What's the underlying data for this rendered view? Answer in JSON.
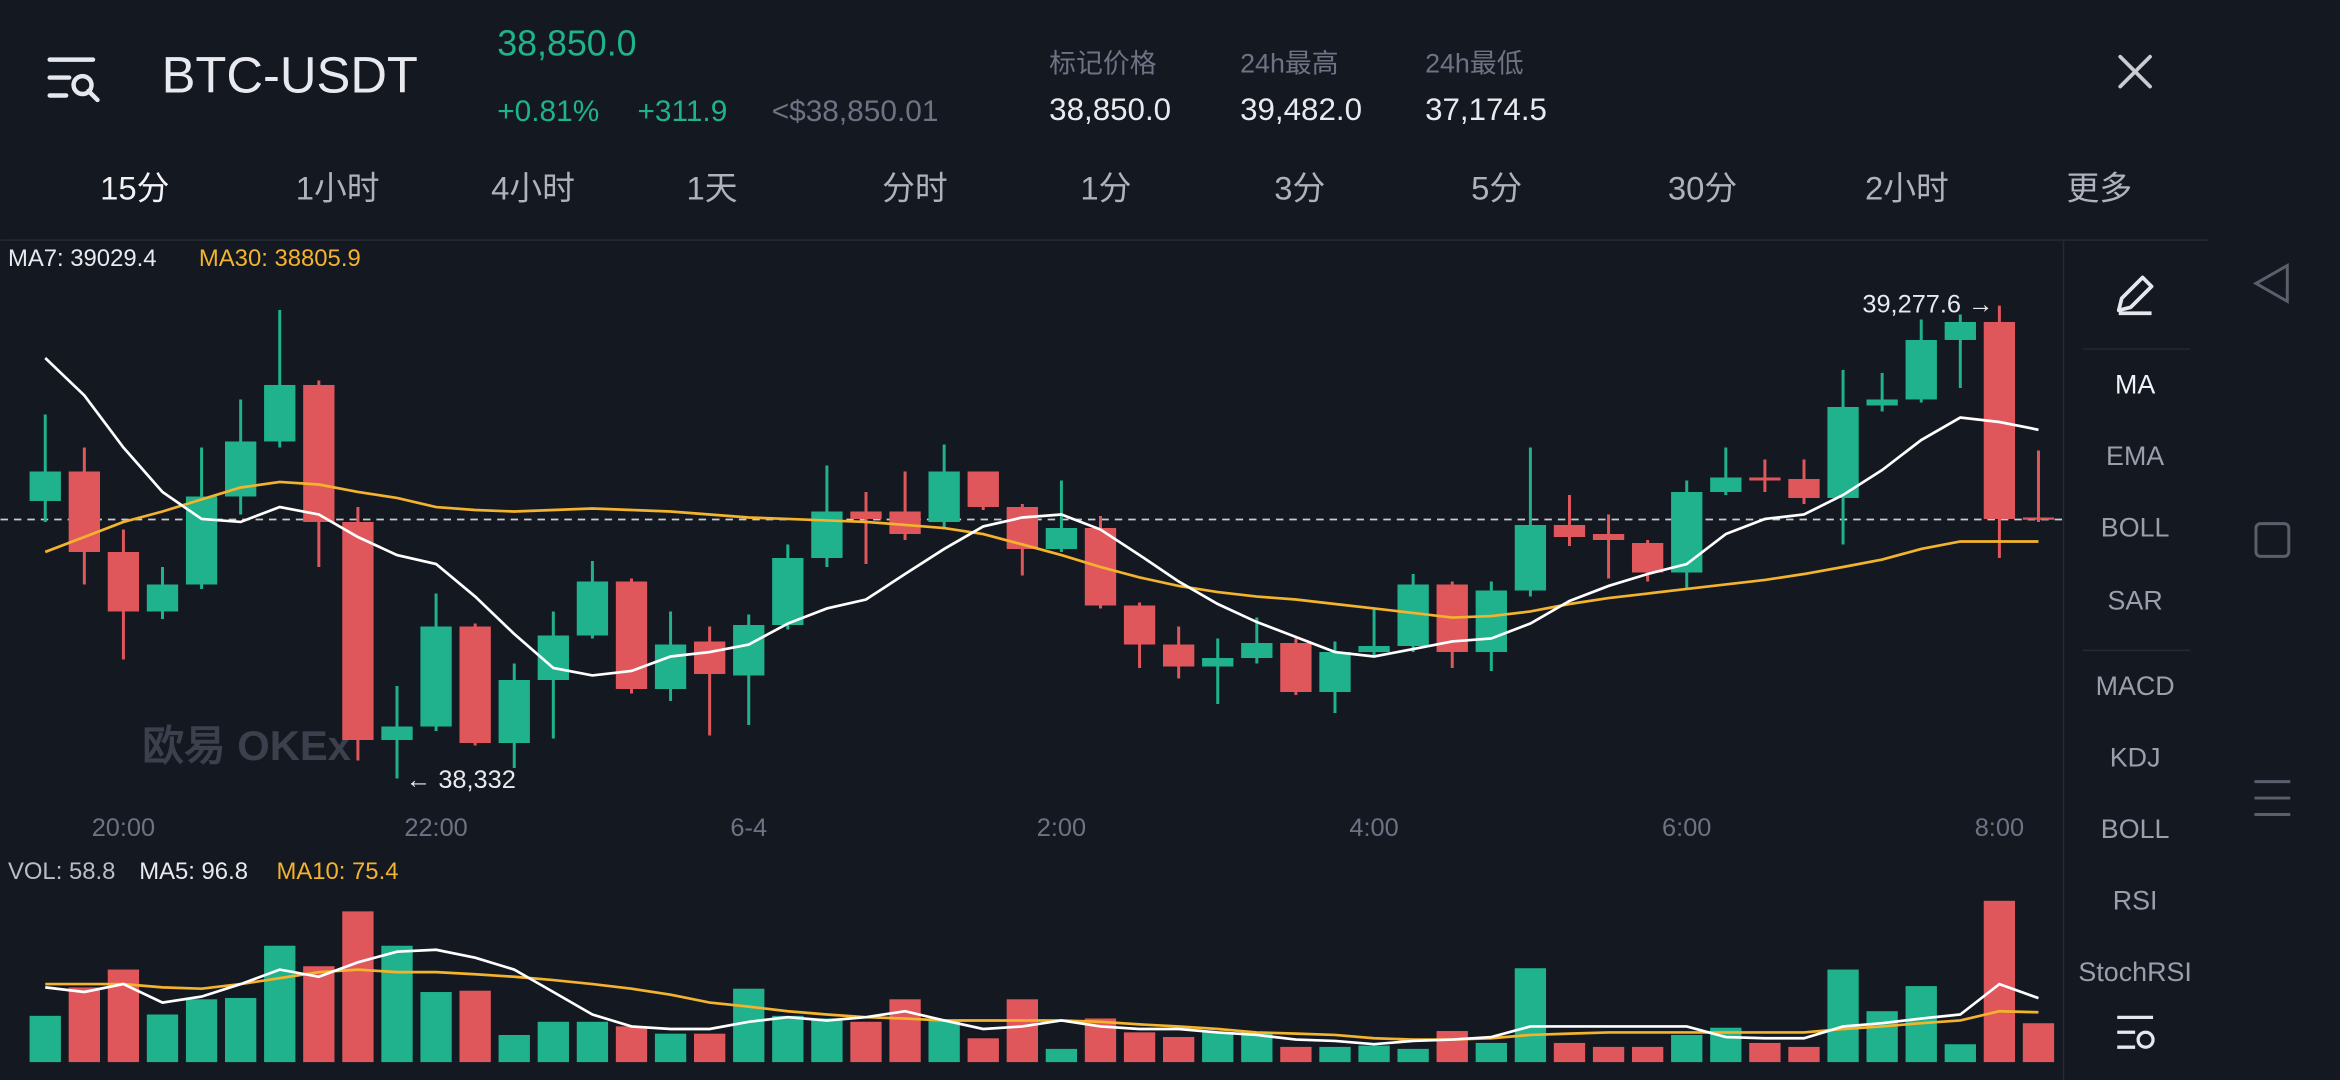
{
  "header": {
    "symbol": "BTC-USDT",
    "last_price": "38,850.0",
    "change_pct": "+0.81%",
    "change": "+311.9",
    "index_price": "<$38,850.01",
    "stats": [
      {
        "label": "标记价格",
        "value": "38,850.0"
      },
      {
        "label": "24h最高",
        "value": "39,482.0"
      },
      {
        "label": "24h最低",
        "value": "37,174.5"
      }
    ]
  },
  "tabs": [
    "15分",
    "1小时",
    "4小时",
    "1天",
    "分时",
    "1分",
    "3分",
    "5分",
    "30分",
    "2小时",
    "更多"
  ],
  "kline": {
    "type": "candlestick",
    "legend": {
      "ma7": "MA7: 39029.4",
      "ma30": "MA30: 38805.9"
    },
    "watermark": "欧易 OKEx",
    "high_label": "39,277.6 →",
    "low_label": "← 38,332",
    "up_color": "#1fb28d",
    "down_color": "#e0575b",
    "ma7_color": "#ffffff",
    "ma30_color": "#f3b32c",
    "ylim": [
      38278,
      39337
    ],
    "price_line": 38850,
    "categories": [
      null,
      null,
      "20:00",
      null,
      null,
      null,
      null,
      null,
      null,
      null,
      "22:00",
      null,
      null,
      null,
      null,
      null,
      null,
      null,
      "6-4",
      null,
      null,
      null,
      null,
      null,
      null,
      null,
      "2:00",
      null,
      null,
      null,
      null,
      null,
      null,
      null,
      "4:00",
      null,
      null,
      null,
      null,
      null,
      null,
      null,
      "6:00",
      null,
      null,
      null,
      null,
      null,
      null,
      null,
      "8:00",
      null
    ],
    "open": [
      38887,
      38946,
      38785,
      38666,
      38720,
      38896,
      39006,
      39119,
      38845,
      38409,
      38436,
      38636,
      38403,
      38529,
      38618,
      38726,
      38511,
      38606,
      38538,
      38639,
      38773,
      38866,
      38866,
      38845,
      38946,
      38875,
      38791,
      38833,
      38678,
      38600,
      38556,
      38573,
      38603,
      38505,
      38585,
      38597,
      38720,
      38585,
      38708,
      38839,
      38821,
      38803,
      38744,
      38905,
      38934,
      38931,
      38893,
      39078,
      39090,
      39209,
      39245,
      38854
    ],
    "close": [
      38946,
      38785,
      38666,
      38720,
      38896,
      39006,
      39119,
      38845,
      38409,
      38436,
      38636,
      38403,
      38529,
      38618,
      38726,
      38511,
      38600,
      38541,
      38639,
      38773,
      38866,
      38851,
      38821,
      38946,
      38875,
      38791,
      38833,
      38678,
      38600,
      38556,
      38573,
      38603,
      38505,
      38585,
      38597,
      38720,
      38585,
      38708,
      38839,
      38815,
      38809,
      38744,
      38905,
      38934,
      38928,
      38893,
      39075,
      39090,
      39209,
      39245,
      38851,
      38850
    ],
    "high": [
      39060,
      38994,
      38830,
      38755,
      38994,
      39090,
      39269,
      39128,
      38875,
      38517,
      38702,
      38642,
      38562,
      38666,
      38767,
      38732,
      38666,
      38636,
      38660,
      38800,
      38958,
      38905,
      38946,
      39000,
      38946,
      38881,
      38928,
      38857,
      38684,
      38636,
      38612,
      38654,
      38612,
      38606,
      38672,
      38741,
      38726,
      38726,
      38994,
      38899,
      38860,
      38809,
      38928,
      38994,
      38970,
      38970,
      39149,
      39143,
      39250,
      39260,
      39277.6,
      38988
    ],
    "low": [
      38845,
      38720,
      38570,
      38651,
      38711,
      38860,
      38994,
      38755,
      38368,
      38332,
      38427,
      38398,
      38353,
      38412,
      38612,
      38502,
      38487,
      38418,
      38439,
      38630,
      38755,
      38761,
      38809,
      38830,
      38869,
      38738,
      38785,
      38672,
      38553,
      38532,
      38481,
      38562,
      38499,
      38463,
      38576,
      38585,
      38553,
      38547,
      38696,
      38797,
      38732,
      38726,
      38711,
      38899,
      38905,
      38881,
      38800,
      39066,
      39084,
      39113,
      38773,
      38845
    ],
    "ma7": [
      39173,
      39098,
      38994,
      38905,
      38851,
      38845,
      38875,
      38860,
      38815,
      38779,
      38761,
      38696,
      38621,
      38553,
      38538,
      38547,
      38576,
      38585,
      38600,
      38642,
      38672,
      38690,
      38741,
      38791,
      38836,
      38854,
      38860,
      38830,
      38779,
      38726,
      38681,
      38645,
      38615,
      38585,
      38576,
      38591,
      38606,
      38612,
      38642,
      38687,
      38717,
      38741,
      38761,
      38821,
      38851,
      38860,
      38899,
      38949,
      39009,
      39054,
      39045,
      39029.4
    ],
    "ma30": [
      38785,
      38815,
      38845,
      38866,
      38890,
      38914,
      38925,
      38920,
      38905,
      38893,
      38875,
      38869,
      38866,
      38869,
      38872,
      38869,
      38866,
      38860,
      38854,
      38851,
      38848,
      38845,
      38839,
      38833,
      38821,
      38800,
      38779,
      38755,
      38734,
      38717,
      38705,
      38696,
      38690,
      38681,
      38672,
      38663,
      38654,
      38657,
      38666,
      38681,
      38693,
      38702,
      38711,
      38720,
      38729,
      38741,
      38755,
      38770,
      38791,
      38806,
      38806,
      38805.9
    ]
  },
  "volume": {
    "legend": {
      "vol": "VOL: 58.8",
      "ma5": "MA5: 96.8",
      "ma10": "MA10: 75.4"
    },
    "ylim": [
      0,
      264
    ],
    "values": [
      70,
      113,
      140,
      72,
      95,
      97,
      176,
      145,
      228,
      176,
      106,
      108,
      41,
      61,
      61,
      54,
      43,
      43,
      111,
      70,
      66,
      61,
      95,
      63,
      36,
      95,
      20,
      66,
      45,
      38,
      45,
      45,
      23,
      23,
      25,
      20,
      47,
      29,
      142,
      29,
      23,
      23,
      41,
      52,
      29,
      23,
      140,
      77,
      115,
      27,
      244,
      58.8
    ],
    "ma5": [
      113,
      106,
      118,
      90,
      99,
      118,
      140,
      129,
      151,
      167,
      170,
      158,
      140,
      106,
      72,
      54,
      50,
      50,
      61,
      68,
      63,
      68,
      77,
      63,
      50,
      54,
      63,
      54,
      50,
      50,
      45,
      41,
      34,
      32,
      27,
      32,
      34,
      38,
      54,
      54,
      54,
      54,
      54,
      38,
      36,
      36,
      54,
      59,
      66,
      72,
      118,
      96.8
    ],
    "ma10": [
      118,
      118,
      118,
      113,
      111,
      118,
      127,
      136,
      140,
      136,
      136,
      133,
      129,
      124,
      118,
      111,
      102,
      90,
      84,
      77,
      72,
      68,
      66,
      63,
      63,
      63,
      63,
      61,
      57,
      54,
      50,
      45,
      43,
      41,
      36,
      34,
      34,
      36,
      41,
      43,
      45,
      45,
      45,
      45,
      45,
      45,
      50,
      54,
      59,
      63,
      77,
      75.4
    ]
  },
  "side_menu": [
    "MA",
    "EMA",
    "BOLL",
    "SAR",
    "MACD",
    "KDJ",
    "BOLL",
    "RSI",
    "StochRSI"
  ]
}
